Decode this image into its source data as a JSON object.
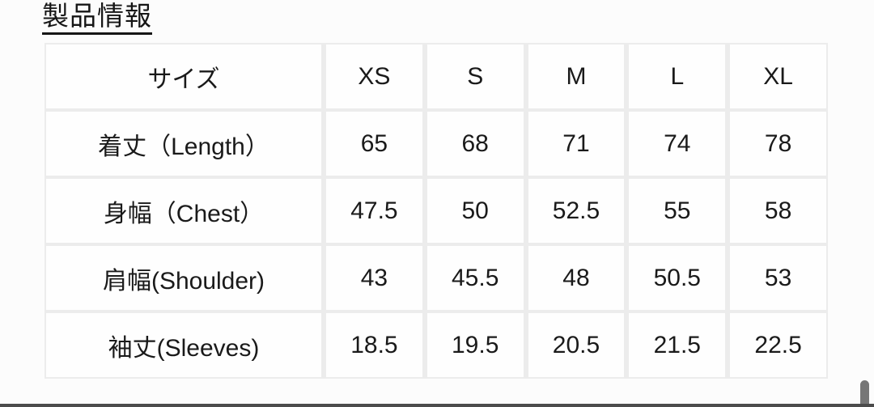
{
  "page": {
    "title": "製品情報"
  },
  "table": {
    "header": {
      "label": "サイズ",
      "sizes": [
        "XS",
        "S",
        "M",
        "L",
        "XL"
      ]
    },
    "rows": [
      {
        "label": "着丈（Length）",
        "values": [
          "65",
          "68",
          "71",
          "74",
          "78"
        ]
      },
      {
        "label": "身幅（Chest）",
        "values": [
          "47.5",
          "50",
          "52.5",
          "55",
          "58"
        ]
      },
      {
        "label": "肩幅(Shoulder)",
        "values": [
          "43",
          "45.5",
          "48",
          "50.5",
          "53"
        ]
      },
      {
        "label": "袖丈(Sleeves)",
        "values": [
          "18.5",
          "19.5",
          "20.5",
          "21.5",
          "22.5"
        ]
      }
    ]
  },
  "colors": {
    "text": "#1a1a1a",
    "grid_line": "#ececec",
    "cell_bg": "#fefefe",
    "page_bg": "#fcfcfc",
    "scrollbar_thumb": "#767676",
    "bottom_bar": "#4c4c4c"
  }
}
